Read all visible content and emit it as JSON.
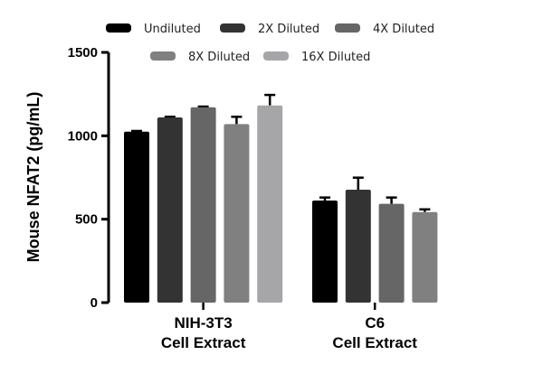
{
  "chart_data": {
    "type": "bar",
    "title": "",
    "ylabel": "Mouse NFAT2 (pg/mL)",
    "xlabel": "",
    "ylim": [
      0,
      1500
    ],
    "yticks": [
      "0",
      "500",
      "1000",
      "1500"
    ],
    "legend_placement": "top",
    "grid": false,
    "categories": [
      [
        "NIH-3T3",
        "Cell Extract"
      ],
      [
        "C6",
        "Cell Extract"
      ]
    ],
    "series": [
      {
        "name": "Undiluted",
        "color": "#000000",
        "values": [
          1025,
          612
        ],
        "errors": [
          4,
          18
        ]
      },
      {
        "name": "2X Diluted",
        "color": "#333333",
        "values": [
          1110,
          677
        ],
        "errors": [
          4,
          72
        ]
      },
      {
        "name": "4X Diluted",
        "color": "#666666",
        "values": [
          1171,
          592
        ],
        "errors": [
          4,
          38
        ]
      },
      {
        "name": "8X Diluted",
        "color": "#808080",
        "values": [
          1070,
          543
        ],
        "errors": [
          44,
          16
        ]
      },
      {
        "name": "16X Diluted",
        "color": "#a6a6a8",
        "values": [
          1182,
          null
        ],
        "errors": [
          63,
          null
        ]
      }
    ]
  }
}
